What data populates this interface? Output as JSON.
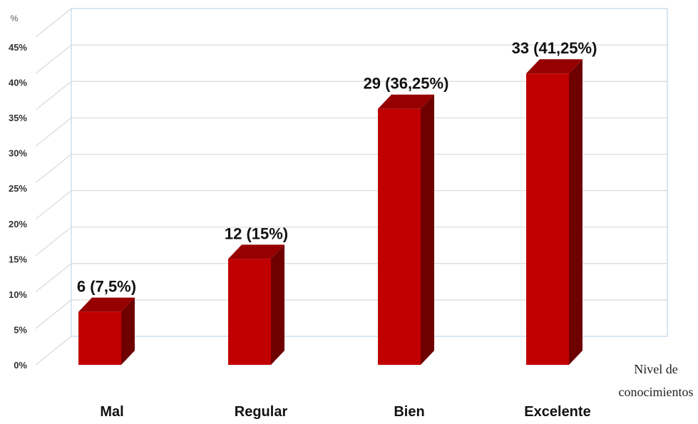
{
  "chart_data": {
    "type": "bar",
    "categories": [
      "Mal",
      "Regular",
      "Bien",
      "Excelente"
    ],
    "values": [
      7.5,
      15,
      36.25,
      41.25
    ],
    "data_labels": [
      "6 (7,5%)",
      "12 (15%)",
      "29 (36,25%)",
      "33 (41,25%)"
    ],
    "ylabel": "%",
    "xlabel_lines": [
      "Nivel de",
      "conocimientos"
    ],
    "ylim": [
      0,
      45
    ],
    "yticks": [
      0,
      5,
      10,
      15,
      20,
      25,
      30,
      35,
      40,
      45
    ],
    "ytick_labels": [
      "0%",
      "5%",
      "10%",
      "15%",
      "20%",
      "25%",
      "30%",
      "35%",
      "40%",
      "45%"
    ],
    "grid": true,
    "legend": "none",
    "bar_3d": true
  },
  "colors": {
    "bar_front": "#c00000",
    "bar_top": "#960000",
    "bar_side": "#6e0000",
    "grid": "#d9d9d9",
    "plot_border": "#bdd7ee"
  }
}
